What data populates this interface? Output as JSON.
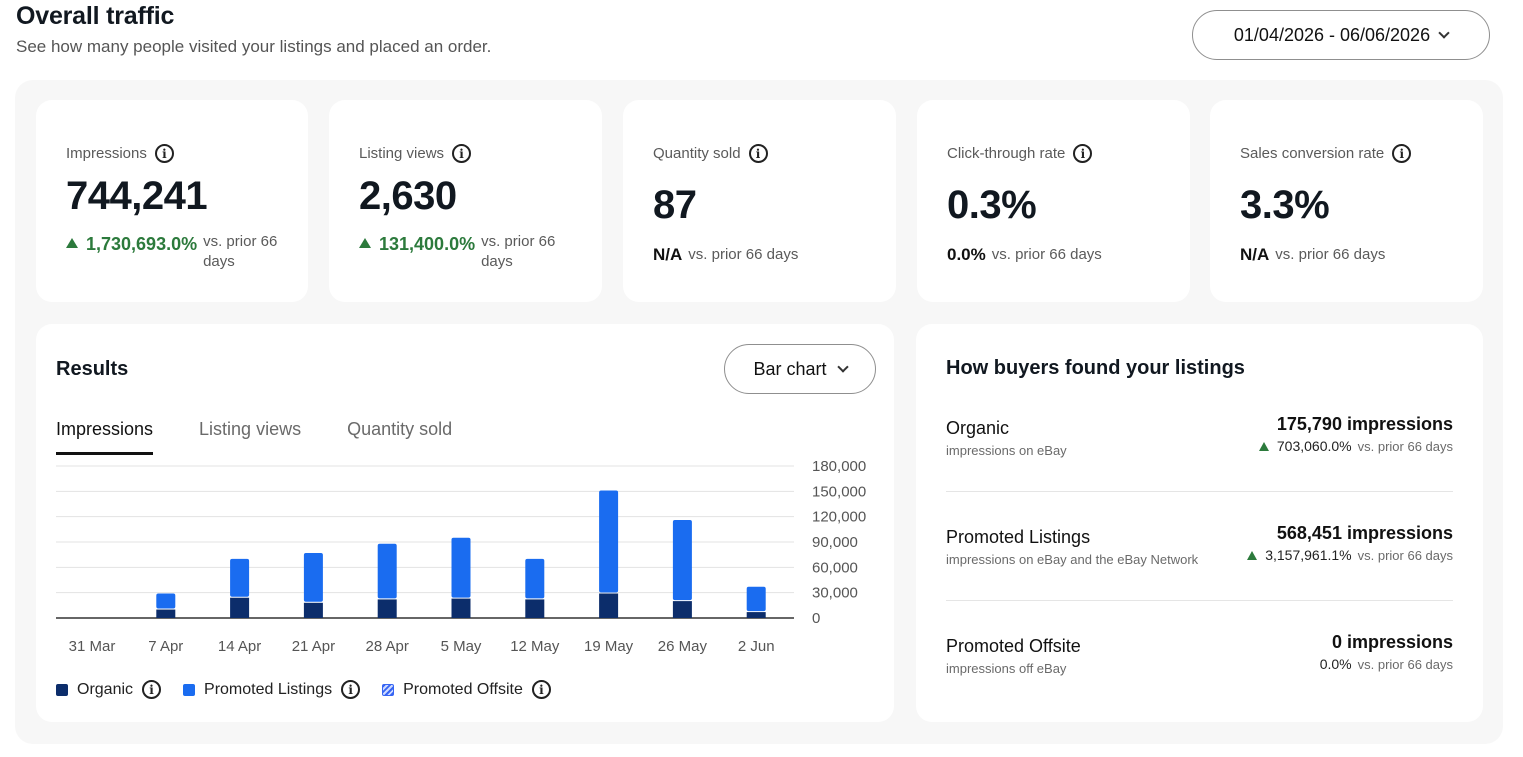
{
  "header": {
    "title": "Overall traffic",
    "subtitle": "See how many people visited your listings and placed an order.",
    "date_range": "01/04/2026 - 06/06/2026"
  },
  "kpis": [
    {
      "label": "Impressions",
      "value": "744,241",
      "delta": "1,730,693.0%",
      "trend": "up",
      "vs": "vs. prior 66 days"
    },
    {
      "label": "Listing views",
      "value": "2,630",
      "delta": "131,400.0%",
      "trend": "up",
      "vs": "vs. prior 66 days"
    },
    {
      "label": "Quantity sold",
      "value": "87",
      "delta": "N/A",
      "trend": "none",
      "vs": "vs. prior 66 days"
    },
    {
      "label": "Click-through rate",
      "value": "0.3%",
      "delta": "0.0%",
      "trend": "none",
      "vs": "vs. prior 66 days"
    },
    {
      "label": "Sales conversion rate",
      "value": "3.3%",
      "delta": "N/A",
      "trend": "none",
      "vs": "vs. prior 66 days"
    }
  ],
  "results": {
    "title": "Results",
    "chart_type_label": "Bar chart",
    "tabs": [
      "Impressions",
      "Listing views",
      "Quantity sold"
    ],
    "active_tab": 0,
    "legend": [
      "Organic",
      "Promoted Listings",
      "Promoted Offsite"
    ]
  },
  "colors": {
    "organic": "#0c2d6b",
    "promoted_listings": "#1a6cf0",
    "promoted_offsite": "#3665f3",
    "positive": "#2c7a3c"
  },
  "chart_data": {
    "type": "bar",
    "stacked": true,
    "categories": [
      "31 Mar",
      "7 Apr",
      "14 Apr",
      "21 Apr",
      "28 Apr",
      "5 May",
      "12 May",
      "19 May",
      "26 May",
      "2 Jun"
    ],
    "series": [
      {
        "name": "Organic",
        "values": [
          0,
          10000,
          24000,
          18000,
          22000,
          23000,
          22000,
          29000,
          20000,
          7000
        ]
      },
      {
        "name": "Promoted Listings",
        "values": [
          0,
          19000,
          46000,
          59000,
          66000,
          72000,
          48000,
          122000,
          96000,
          30000
        ]
      },
      {
        "name": "Promoted Offsite",
        "values": [
          0,
          0,
          0,
          0,
          0,
          0,
          0,
          0,
          0,
          0
        ]
      }
    ],
    "yticks": [
      "180,000",
      "150,000",
      "120,000",
      "90,000",
      "60,000",
      "30,000",
      "0"
    ],
    "ylim": [
      0,
      180000
    ],
    "grid": true,
    "legend_position": "bottom-left"
  },
  "buyers": {
    "title": "How buyers found your listings",
    "sources": [
      {
        "name": "Organic",
        "desc": "impressions on eBay",
        "impressions": "175,790 impressions",
        "delta": "703,060.0%",
        "trend": "up",
        "vs": "vs. prior 66 days"
      },
      {
        "name": "Promoted Listings",
        "desc": "impressions on eBay and the eBay Network",
        "impressions": "568,451 impressions",
        "delta": "3,157,961.1%",
        "trend": "up",
        "vs": "vs. prior 66 days"
      },
      {
        "name": "Promoted Offsite",
        "desc": "impressions off eBay",
        "impressions": "0 impressions",
        "delta": "0.0%",
        "trend": "none",
        "vs": "vs. prior 66 days"
      }
    ]
  }
}
